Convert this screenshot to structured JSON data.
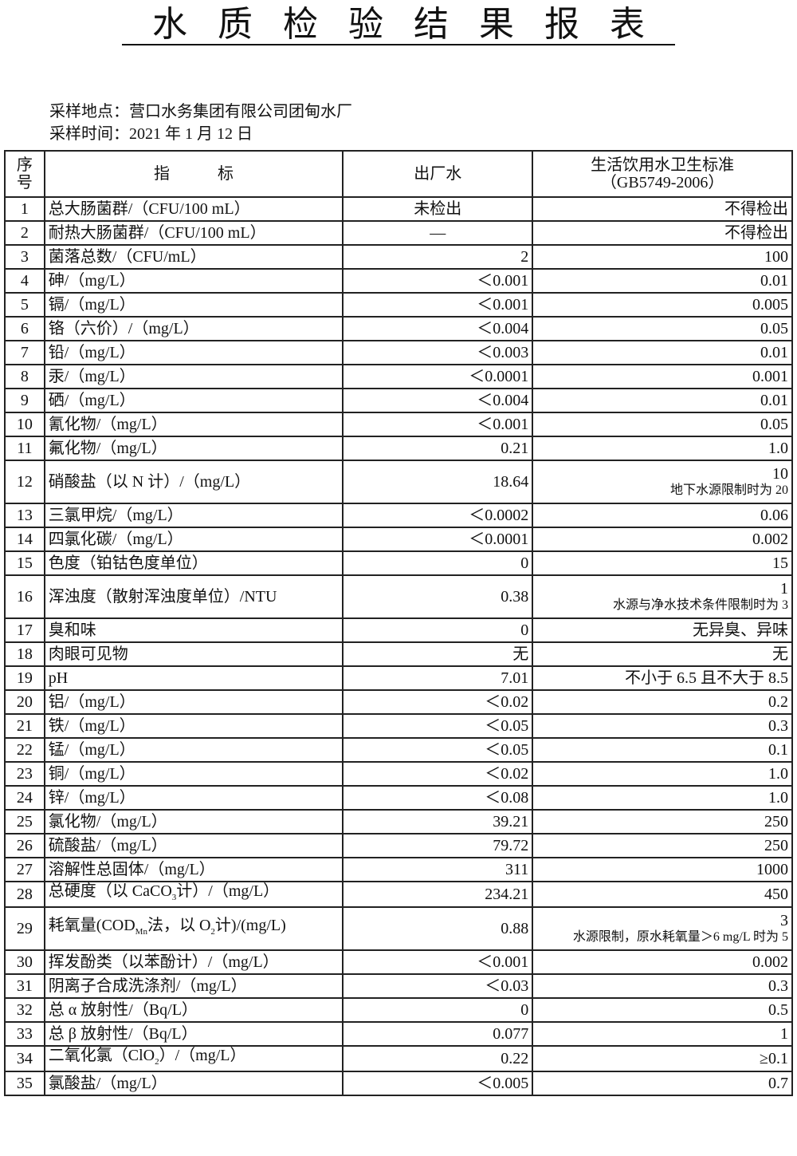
{
  "title": "水质检验结果报表",
  "location_label": "采样地点：营口水务集团有限公司团甸水厂",
  "date_label": "采样时间：2021 年 1 月 12 日",
  "headers": {
    "seq": "序号",
    "indicator": "指　　　标",
    "plant": "出厂水",
    "standard_line1": "生活饮用水卫生标准",
    "standard_line2": "（GB5749-2006）"
  },
  "rows": [
    {
      "no": "1",
      "indicator": [
        "总大肠菌群/（CFU/100 mL）"
      ],
      "value": "未检出",
      "standard": "不得检出",
      "value_align": "center"
    },
    {
      "no": "2",
      "indicator": [
        "耐热大肠菌群/（CFU/100 mL）"
      ],
      "value": "—",
      "standard": "不得检出",
      "value_align": "center"
    },
    {
      "no": "3",
      "indicator": [
        "菌落总数/（CFU/mL）"
      ],
      "value": "2",
      "standard": "100"
    },
    {
      "no": "4",
      "indicator": [
        "砷/（mg/L）"
      ],
      "value": "＜0.001",
      "standard": "0.01"
    },
    {
      "no": "5",
      "indicator": [
        "镉/（mg/L）"
      ],
      "value": "＜0.001",
      "standard": "0.005"
    },
    {
      "no": "6",
      "indicator": [
        "铬（六价）/（mg/L）"
      ],
      "value": "＜0.004",
      "standard": "0.05"
    },
    {
      "no": "7",
      "indicator": [
        "铅/（mg/L）"
      ],
      "value": "＜0.003",
      "standard": "0.01"
    },
    {
      "no": "8",
      "indicator": [
        "汞/（mg/L）"
      ],
      "value": "＜0.0001",
      "standard": "0.001"
    },
    {
      "no": "9",
      "indicator": [
        "硒/（mg/L）"
      ],
      "value": "＜0.004",
      "standard": "0.01"
    },
    {
      "no": "10",
      "indicator": [
        "氰化物/（mg/L）"
      ],
      "value": "＜0.001",
      "standard": "0.05"
    },
    {
      "no": "11",
      "indicator": [
        "氟化物/（mg/L）"
      ],
      "value": "0.21",
      "standard": "1.0"
    },
    {
      "no": "12",
      "indicator": [
        "硝酸盐（以 N 计）/（mg/L）"
      ],
      "value": "18.64",
      "standard": "10",
      "standard_note": "地下水源限制时为 20"
    },
    {
      "no": "13",
      "indicator": [
        "三氯甲烷/（mg/L）"
      ],
      "value": "＜0.0002",
      "standard": "0.06"
    },
    {
      "no": "14",
      "indicator": [
        "四氯化碳/（mg/L）"
      ],
      "value": "＜0.0001",
      "standard": "0.002"
    },
    {
      "no": "15",
      "indicator": [
        "色度（铂钴色度单位）"
      ],
      "value": "0",
      "standard": "15"
    },
    {
      "no": "16",
      "indicator": [
        "浑浊度（散射浑浊度单位）/NTU"
      ],
      "value": "0.38",
      "standard": "1",
      "standard_note": "水源与净水技术条件限制时为 3"
    },
    {
      "no": "17",
      "indicator": [
        "臭和味"
      ],
      "value": "0",
      "standard": "无异臭、异味"
    },
    {
      "no": "18",
      "indicator": [
        "肉眼可见物"
      ],
      "value": "无",
      "standard": "无"
    },
    {
      "no": "19",
      "indicator": [
        "pH"
      ],
      "value": "7.01",
      "standard": "不小于 6.5 且不大于 8.5"
    },
    {
      "no": "20",
      "indicator": [
        "铝/（mg/L）"
      ],
      "value": "＜0.02",
      "standard": "0.2"
    },
    {
      "no": "21",
      "indicator": [
        "铁/（mg/L）"
      ],
      "value": "＜0.05",
      "standard": "0.3"
    },
    {
      "no": "22",
      "indicator": [
        "锰/（mg/L）"
      ],
      "value": "＜0.05",
      "standard": "0.1"
    },
    {
      "no": "23",
      "indicator": [
        "铜/（mg/L）"
      ],
      "value": "＜0.02",
      "standard": "1.0"
    },
    {
      "no": "24",
      "indicator": [
        "锌/（mg/L）"
      ],
      "value": "＜0.08",
      "standard": "1.0"
    },
    {
      "no": "25",
      "indicator": [
        "氯化物/（mg/L）"
      ],
      "value": "39.21",
      "standard": "250"
    },
    {
      "no": "26",
      "indicator": [
        "硫酸盐/（mg/L）"
      ],
      "value": "79.72",
      "standard": "250"
    },
    {
      "no": "27",
      "indicator": [
        "溶解性总固体/（mg/L）"
      ],
      "value": "311",
      "standard": "1000"
    },
    {
      "no": "28",
      "indicator": [
        "总硬度（以 CaCO",
        {
          "sub": "3"
        },
        "计）/（mg/L）"
      ],
      "value": "234.21",
      "standard": "450"
    },
    {
      "no": "29",
      "indicator": [
        "耗氧量(COD",
        {
          "sub": "Mn"
        },
        "法，以 O",
        {
          "sub": "2"
        },
        "计)/(mg/L)"
      ],
      "value": "0.88",
      "standard": "3",
      "standard_note": "水源限制，原水耗氧量＞6 mg/L 时为 5"
    },
    {
      "no": "30",
      "indicator": [
        "挥发酚类（以苯酚计）/（mg/L）"
      ],
      "value": "＜0.001",
      "standard": "0.002"
    },
    {
      "no": "31",
      "indicator": [
        "阴离子合成洗涤剂/（mg/L）"
      ],
      "value": "＜0.03",
      "standard": "0.3"
    },
    {
      "no": "32",
      "indicator": [
        "总 α 放射性/（Bq/L）"
      ],
      "value": "0",
      "standard": "0.5"
    },
    {
      "no": "33",
      "indicator": [
        "总 β 放射性/（Bq/L）"
      ],
      "value": "0.077",
      "standard": "1"
    },
    {
      "no": "34",
      "indicator": [
        "二氧化氯（ClO",
        {
          "sub": "2"
        },
        "）/（mg/L）"
      ],
      "value": "0.22",
      "standard": "≥0.1"
    },
    {
      "no": "35",
      "indicator": [
        "氯酸盐/（mg/L）"
      ],
      "value": "＜0.005",
      "standard": "0.7"
    }
  ]
}
